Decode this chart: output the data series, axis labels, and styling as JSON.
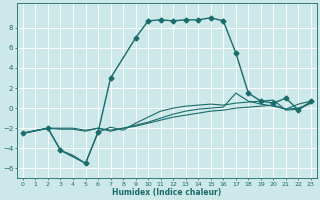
{
  "title": "",
  "xlabel": "Humidex (Indice chaleur)",
  "bg_color": "#cce8e8",
  "grid_color": "#ffffff",
  "line_color": "#1a6b6b",
  "xlim": [
    -0.5,
    23.5
  ],
  "ylim": [
    -7,
    10.5
  ],
  "xticks": [
    0,
    1,
    2,
    3,
    4,
    5,
    6,
    7,
    8,
    9,
    10,
    11,
    12,
    13,
    14,
    15,
    16,
    17,
    18,
    19,
    20,
    21,
    22,
    23
  ],
  "yticks": [
    -6,
    -4,
    -2,
    0,
    2,
    4,
    6,
    8
  ],
  "series": [
    {
      "x": [
        0,
        2,
        3,
        4,
        5,
        6,
        7,
        8,
        9,
        10,
        11,
        12,
        13,
        14,
        15,
        16,
        17,
        18,
        19,
        20,
        21,
        22,
        23
      ],
      "y": [
        -2.5,
        -2.0,
        -2.0,
        -2.0,
        -2.2,
        -2.0,
        -2.2,
        -2.0,
        -1.8,
        -1.5,
        -1.2,
        -0.9,
        -0.7,
        -0.5,
        -0.3,
        -0.2,
        0.0,
        0.1,
        0.2,
        0.3,
        -0.1,
        0.0,
        0.5
      ],
      "marker": null,
      "lw": 0.8
    },
    {
      "x": [
        0,
        2,
        3,
        4,
        5,
        6,
        7,
        8,
        9,
        10,
        11,
        12,
        13,
        14,
        15,
        16,
        17,
        18,
        19,
        20,
        21,
        22,
        23
      ],
      "y": [
        -2.5,
        -2.0,
        -2.1,
        -2.1,
        -2.3,
        -2.0,
        -2.3,
        -2.0,
        -1.7,
        -1.4,
        -1.0,
        -0.6,
        -0.3,
        -0.1,
        0.0,
        0.1,
        1.5,
        0.7,
        0.4,
        0.2,
        -0.1,
        0.4,
        0.7
      ],
      "marker": null,
      "lw": 0.8
    },
    {
      "x": [
        0,
        2,
        3,
        4,
        5,
        6,
        7,
        8,
        9,
        10,
        11,
        12,
        13,
        14,
        15,
        16,
        17,
        18,
        19,
        20,
        21,
        22,
        23
      ],
      "y": [
        -2.5,
        -2.0,
        -4.2,
        -4.7,
        -5.5,
        -2.4,
        -1.9,
        -2.2,
        -1.5,
        -0.9,
        -0.3,
        0.0,
        0.2,
        0.3,
        0.4,
        0.3,
        0.5,
        0.6,
        0.7,
        0.8,
        -0.2,
        -0.1,
        0.5
      ],
      "marker": null,
      "lw": 0.8
    },
    {
      "x": [
        0,
        2,
        3,
        5,
        6,
        7,
        9,
        10,
        11,
        12,
        13,
        14,
        15,
        16,
        17,
        18,
        19,
        20,
        21,
        22,
        23
      ],
      "y": [
        -2.5,
        -2.0,
        -4.2,
        -5.5,
        -2.4,
        3.0,
        7.0,
        8.7,
        8.8,
        8.7,
        8.8,
        8.8,
        9.0,
        8.7,
        5.5,
        1.5,
        0.7,
        0.5,
        1.0,
        -0.2,
        0.7
      ],
      "marker": "D",
      "lw": 1.0
    }
  ]
}
